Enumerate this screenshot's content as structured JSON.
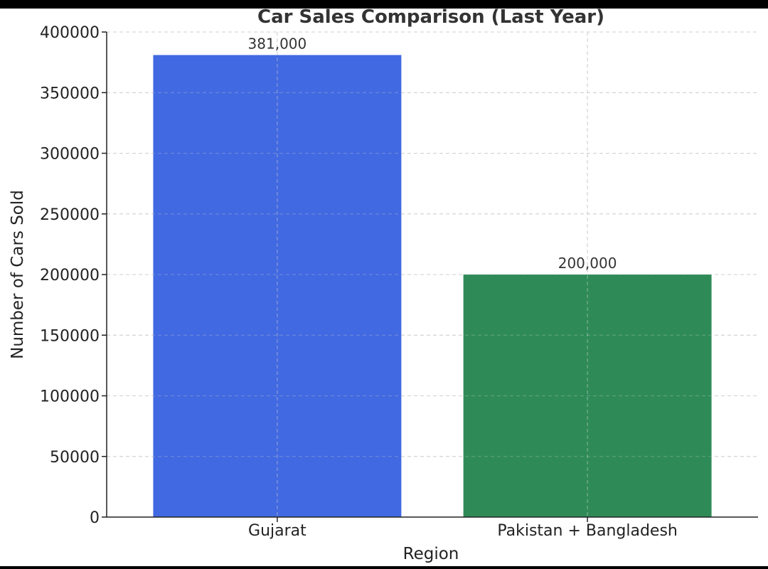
{
  "chart_data": {
    "type": "bar",
    "title": "Car Sales Comparison (Last Year)",
    "xlabel": "Region",
    "ylabel": "Number of Cars Sold",
    "categories": [
      "Gujarat",
      "Pakistan + Bangladesh"
    ],
    "values": [
      381000,
      200000
    ],
    "data_labels": [
      "381,000",
      "200,000"
    ],
    "colors": [
      "#4169E1",
      "#2E8B57"
    ],
    "ylim": [
      0,
      400000
    ],
    "yticks": [
      0,
      50000,
      100000,
      150000,
      200000,
      250000,
      300000,
      350000,
      400000
    ],
    "ytick_labels": [
      "0",
      "50000",
      "100000",
      "150000",
      "200000",
      "250000",
      "300000",
      "350000",
      "400000"
    ],
    "grid": true
  }
}
